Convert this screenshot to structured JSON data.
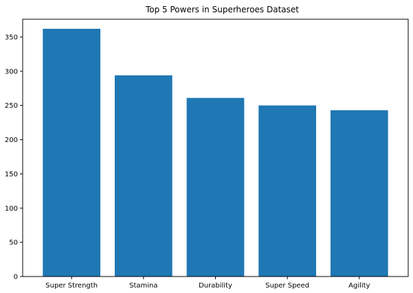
{
  "chart_data": {
    "type": "bar",
    "title": "Top 5 Powers in Superheroes Dataset",
    "xlabel": "",
    "ylabel": "",
    "categories": [
      "Super Strength",
      "Stamina",
      "Durability",
      "Super Speed",
      "Agility"
    ],
    "values": [
      362,
      294,
      261,
      250,
      243
    ],
    "ylim": [
      0,
      376
    ],
    "yticks": [
      0,
      50,
      100,
      150,
      200,
      250,
      300,
      350
    ],
    "grid": false,
    "bar_color": "#1f77b4"
  }
}
